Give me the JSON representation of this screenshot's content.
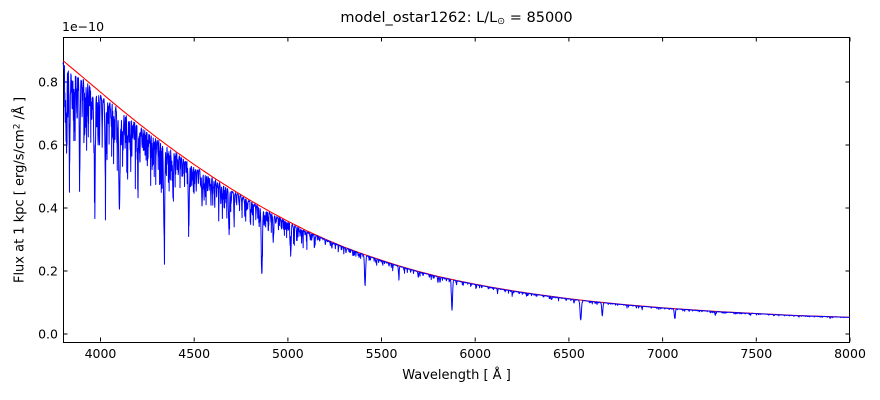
{
  "figure": {
    "background": "#ffffff",
    "frame_color": "#000000"
  },
  "chart_data": {
    "type": "line",
    "title": "model_ostar1262: L/L⊙ = 85000",
    "title_parts": {
      "prefix": "model_ostar1262: L/L",
      "sun": "⊙",
      "suffix": " = 85000"
    },
    "xlabel": "Wavelength [ Å ]",
    "ylabel": "Flux at 1 kpc [ erg/s/cm² /Å ]",
    "ylabel_parts": {
      "prefix": "Flux at 1 kpc [ erg/s/cm",
      "sup": "2",
      "suffix": " /Å ]"
    },
    "offset_text": "1e−10",
    "xlim": [
      3800,
      8000
    ],
    "ylim": [
      -0.0254,
      0.943
    ],
    "x_ticks": [
      4000,
      4500,
      5000,
      5500,
      6000,
      6500,
      7000,
      7500,
      8000
    ],
    "x_tick_labels": [
      "4000",
      "4500",
      "5000",
      "5500",
      "6000",
      "6500",
      "7000",
      "7500",
      "8000"
    ],
    "y_ticks": [
      0.0,
      0.2,
      0.4,
      0.6,
      0.8
    ],
    "y_tick_labels": [
      "0.0",
      "0.2",
      "0.4",
      "0.6",
      "0.8"
    ],
    "grid": false,
    "legend": null,
    "flux_unit_factor": 1e-10,
    "series": [
      {
        "name": "continuum",
        "color": "#ff0000",
        "points": [
          [
            3800,
            0.868
          ],
          [
            3900,
            0.818
          ],
          [
            4000,
            0.768
          ],
          [
            4100,
            0.718
          ],
          [
            4200,
            0.67
          ],
          [
            4300,
            0.624
          ],
          [
            4400,
            0.58
          ],
          [
            4500,
            0.538
          ],
          [
            4600,
            0.498
          ],
          [
            4700,
            0.46
          ],
          [
            4800,
            0.424
          ],
          [
            4900,
            0.39
          ],
          [
            5000,
            0.358
          ],
          [
            5100,
            0.328
          ],
          [
            5200,
            0.301
          ],
          [
            5300,
            0.276
          ],
          [
            5400,
            0.254
          ],
          [
            5500,
            0.234
          ],
          [
            5600,
            0.215
          ],
          [
            5700,
            0.198
          ],
          [
            5800,
            0.183
          ],
          [
            5900,
            0.17
          ],
          [
            6000,
            0.158
          ],
          [
            6100,
            0.147
          ],
          [
            6200,
            0.137
          ],
          [
            6300,
            0.128
          ],
          [
            6400,
            0.12
          ],
          [
            6500,
            0.112
          ],
          [
            6600,
            0.105
          ],
          [
            6700,
            0.099
          ],
          [
            6800,
            0.093
          ],
          [
            6900,
            0.088
          ],
          [
            7000,
            0.083
          ],
          [
            7100,
            0.079
          ],
          [
            7200,
            0.075
          ],
          [
            7300,
            0.071
          ],
          [
            7400,
            0.068
          ],
          [
            7500,
            0.065
          ],
          [
            7600,
            0.062
          ],
          [
            7700,
            0.059
          ],
          [
            7800,
            0.057
          ],
          [
            7900,
            0.055
          ],
          [
            8000,
            0.053
          ]
        ]
      },
      {
        "name": "spectrum",
        "color": "#0000ff",
        "absorption_lines": [
          [
            3812,
            0.2,
            2.5
          ],
          [
            3819,
            0.3,
            3
          ],
          [
            3835,
            0.34,
            3.5
          ],
          [
            3849,
            0.14,
            2
          ],
          [
            3856,
            0.18,
            2.5
          ],
          [
            3863,
            0.12,
            2
          ],
          [
            3872,
            0.1,
            2
          ],
          [
            3889,
            0.36,
            3.5
          ],
          [
            3903,
            0.08,
            2
          ],
          [
            3913,
            0.09,
            2
          ],
          [
            3920,
            0.12,
            2
          ],
          [
            3927,
            0.1,
            2
          ],
          [
            3936,
            0.09,
            2
          ],
          [
            3950,
            0.11,
            2
          ],
          [
            3957,
            0.08,
            2
          ],
          [
            3964,
            0.16,
            2.5
          ],
          [
            3970,
            0.38,
            4
          ],
          [
            3983,
            0.08,
            2
          ],
          [
            3995,
            0.13,
            2.5
          ],
          [
            4009,
            0.14,
            2.5
          ],
          [
            4026,
            0.32,
            3.5
          ],
          [
            4035,
            0.08,
            2
          ],
          [
            4042,
            0.09,
            2
          ],
          [
            4058,
            0.1,
            2
          ],
          [
            4069,
            0.13,
            2.5
          ],
          [
            4076,
            0.11,
            2
          ],
          [
            4089,
            0.15,
            2.5
          ],
          [
            4101,
            0.44,
            4.5
          ],
          [
            4110,
            0.08,
            2
          ],
          [
            4116,
            0.11,
            2
          ],
          [
            4121,
            0.12,
            2.5
          ],
          [
            4129,
            0.08,
            2
          ],
          [
            4144,
            0.17,
            3
          ],
          [
            4153,
            0.1,
            2
          ],
          [
            4163,
            0.07,
            2
          ],
          [
            4172,
            0.08,
            2
          ],
          [
            4186,
            0.09,
            2
          ],
          [
            4200,
            0.2,
            3
          ],
          [
            4211,
            0.06,
            2
          ],
          [
            4222,
            0.07,
            2
          ],
          [
            4233,
            0.08,
            2
          ],
          [
            4242,
            0.06,
            2
          ],
          [
            4254,
            0.07,
            2
          ],
          [
            4267,
            0.11,
            2
          ],
          [
            4276,
            0.08,
            2
          ],
          [
            4287,
            0.06,
            2
          ],
          [
            4297,
            0.07,
            2
          ],
          [
            4307,
            0.06,
            2
          ],
          [
            4317,
            0.08,
            2
          ],
          [
            4326,
            0.09,
            2
          ],
          [
            4340,
            0.48,
            4.5
          ],
          [
            4351,
            0.1,
            2
          ],
          [
            4359,
            0.07,
            2
          ],
          [
            4368,
            0.08,
            2
          ],
          [
            4379,
            0.1,
            2.5
          ],
          [
            4387,
            0.24,
            3
          ],
          [
            4397,
            0.07,
            2
          ],
          [
            4415,
            0.11,
            2.5
          ],
          [
            4426,
            0.07,
            2
          ],
          [
            4437,
            0.08,
            2
          ],
          [
            4447,
            0.07,
            2
          ],
          [
            4457,
            0.06,
            2
          ],
          [
            4471,
            0.34,
            4
          ],
          [
            4481,
            0.11,
            2
          ],
          [
            4489,
            0.07,
            2
          ],
          [
            4501,
            0.07,
            2
          ],
          [
            4511,
            0.09,
            2.5
          ],
          [
            4522,
            0.07,
            2
          ],
          [
            4534,
            0.08,
            2
          ],
          [
            4542,
            0.2,
            3
          ],
          [
            4553,
            0.13,
            2.5
          ],
          [
            4562,
            0.08,
            2
          ],
          [
            4571,
            0.09,
            2
          ],
          [
            4580,
            0.08,
            2
          ],
          [
            4590,
            0.12,
            2.5
          ],
          [
            4601,
            0.09,
            2
          ],
          [
            4610,
            0.08,
            2
          ],
          [
            4620,
            0.09,
            2
          ],
          [
            4631,
            0.09,
            2
          ],
          [
            4642,
            0.12,
            2.5
          ],
          [
            4650,
            0.11,
            2.5
          ],
          [
            4662,
            0.08,
            2
          ],
          [
            4673,
            0.07,
            2
          ],
          [
            4686,
            0.28,
            3.5
          ],
          [
            4697,
            0.08,
            2
          ],
          [
            4713,
            0.15,
            2.5
          ],
          [
            4725,
            0.06,
            2
          ],
          [
            4740,
            0.06,
            2
          ],
          [
            4755,
            0.07,
            2
          ],
          [
            4770,
            0.06,
            2
          ],
          [
            4785,
            0.06,
            2
          ],
          [
            4803,
            0.06,
            2
          ],
          [
            4815,
            0.07,
            2
          ],
          [
            4830,
            0.06,
            2
          ],
          [
            4847,
            0.1,
            2.5
          ],
          [
            4861,
            0.5,
            4.5
          ],
          [
            4874,
            0.12,
            2.5
          ],
          [
            4880,
            0.1,
            2
          ],
          [
            4895,
            0.07,
            2
          ],
          [
            4910,
            0.07,
            2
          ],
          [
            4922,
            0.22,
            3
          ],
          [
            4935,
            0.06,
            2
          ],
          [
            4950,
            0.05,
            2
          ],
          [
            4965,
            0.06,
            2
          ],
          [
            4980,
            0.05,
            2
          ],
          [
            4995,
            0.06,
            2
          ],
          [
            5016,
            0.24,
            3
          ],
          [
            5032,
            0.08,
            2
          ],
          [
            5048,
            0.11,
            2.5
          ],
          [
            5065,
            0.06,
            2
          ],
          [
            5080,
            0.05,
            2
          ],
          [
            5100,
            0.05,
            2
          ],
          [
            5120,
            0.04,
            2
          ],
          [
            5145,
            0.05,
            2
          ],
          [
            5170,
            0.04,
            2
          ],
          [
            5200,
            0.05,
            2
          ],
          [
            5235,
            0.06,
            2.5
          ],
          [
            5270,
            0.04,
            2
          ],
          [
            5310,
            0.05,
            2
          ],
          [
            5350,
            0.04,
            2
          ],
          [
            5380,
            0.05,
            2
          ],
          [
            5412,
            0.38,
            4
          ],
          [
            5440,
            0.04,
            2
          ],
          [
            5470,
            0.05,
            2.5
          ],
          [
            5505,
            0.04,
            2
          ],
          [
            5540,
            0.04,
            2
          ],
          [
            5560,
            0.05,
            2
          ],
          [
            5592,
            0.14,
            3
          ],
          [
            5620,
            0.04,
            2
          ],
          [
            5655,
            0.04,
            2
          ],
          [
            5696,
            0.09,
            2.5
          ],
          [
            5722,
            0.04,
            2
          ],
          [
            5755,
            0.04,
            2
          ],
          [
            5780,
            0.04,
            2
          ],
          [
            5801,
            0.1,
            2.5
          ],
          [
            5812,
            0.09,
            2.5
          ],
          [
            5846,
            0.04,
            2
          ],
          [
            5876,
            0.56,
            4
          ],
          [
            5900,
            0.04,
            2
          ],
          [
            5935,
            0.04,
            2
          ],
          [
            5977,
            0.04,
            2
          ],
          [
            6004,
            0.05,
            2
          ],
          [
            6035,
            0.04,
            2
          ],
          [
            6070,
            0.04,
            2
          ],
          [
            6119,
            0.07,
            2.5
          ],
          [
            6160,
            0.04,
            2
          ],
          [
            6198,
            0.08,
            2.5
          ],
          [
            6235,
            0.04,
            2
          ],
          [
            6280,
            0.04,
            2
          ],
          [
            6325,
            0.04,
            2
          ],
          [
            6365,
            0.04,
            2
          ],
          [
            6406,
            0.08,
            2.5
          ],
          [
            6445,
            0.04,
            2
          ],
          [
            6485,
            0.05,
            2
          ],
          [
            6527,
            0.1,
            3
          ],
          [
            6563,
            0.58,
            5
          ],
          [
            6610,
            0.04,
            2
          ],
          [
            6640,
            0.05,
            2
          ],
          [
            6678,
            0.42,
            4
          ],
          [
            6710,
            0.04,
            2
          ],
          [
            6760,
            0.04,
            2
          ],
          [
            6810,
            0.04,
            2
          ],
          [
            6860,
            0.05,
            2.5
          ],
          [
            6891,
            0.08,
            2.5
          ],
          [
            6940,
            0.04,
            2
          ],
          [
            6990,
            0.04,
            2
          ],
          [
            7035,
            0.04,
            2
          ],
          [
            7065,
            0.38,
            4
          ],
          [
            7110,
            0.04,
            2
          ],
          [
            7160,
            0.04,
            2
          ],
          [
            7210,
            0.04,
            2
          ],
          [
            7255,
            0.04,
            2
          ],
          [
            7281,
            0.16,
            3
          ],
          [
            7320,
            0.04,
            2
          ],
          [
            7380,
            0.04,
            2
          ],
          [
            7440,
            0.04,
            2
          ],
          [
            7468,
            0.07,
            2.5
          ],
          [
            7520,
            0.04,
            2
          ],
          [
            7565,
            0.04,
            2
          ],
          [
            7593,
            0.06,
            2.5
          ],
          [
            7650,
            0.04,
            2
          ],
          [
            7700,
            0.04,
            2
          ],
          [
            7726,
            0.06,
            2.5
          ],
          [
            7780,
            0.03,
            2
          ],
          [
            7840,
            0.03,
            2
          ],
          [
            7894,
            0.05,
            2.5
          ],
          [
            7950,
            0.03,
            2
          ]
        ]
      }
    ]
  }
}
